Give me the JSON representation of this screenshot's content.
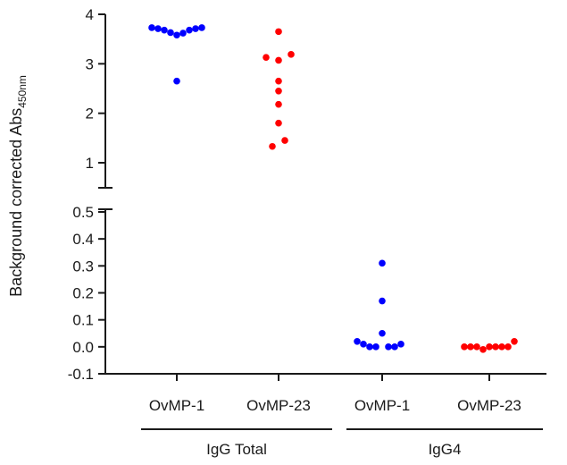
{
  "chart_data": {
    "type": "scatter",
    "ylabel": "Background corrected Abs",
    "ylabel_subscript": "450nm",
    "axis_break": true,
    "panels": [
      {
        "id": "upper",
        "ylim": [
          0.75,
          4
        ],
        "ticks": [
          "1",
          "2",
          "3",
          "4"
        ],
        "tick_values": [
          1,
          2,
          3,
          4
        ]
      },
      {
        "id": "lower",
        "ylim": [
          -0.1,
          0.5
        ],
        "ticks": [
          "-0.1",
          "0.0",
          "0.1",
          "0.2",
          "0.3",
          "0.4",
          "0.5"
        ],
        "tick_values": [
          -0.1,
          0,
          0.1,
          0.2,
          0.3,
          0.4,
          0.5
        ]
      }
    ],
    "categories": [
      "OvMP-1",
      "OvMP-23",
      "OvMP-1",
      "OvMP-23"
    ],
    "groups": [
      {
        "label": "IgG Total",
        "categories": [
          0,
          1
        ]
      },
      {
        "label": "IgG4",
        "categories": [
          2,
          3
        ]
      }
    ],
    "series": [
      {
        "category": 0,
        "panel": "upper",
        "color": "#0000ff",
        "values": [
          3.73,
          3.71,
          3.68,
          3.63,
          3.58,
          3.62,
          3.68,
          3.71,
          3.73,
          2.65
        ],
        "offsets": [
          -4,
          -3,
          -2,
          -1,
          0,
          1,
          2,
          3,
          4,
          0
        ]
      },
      {
        "category": 1,
        "panel": "upper",
        "color": "#ff0000",
        "values": [
          3.65,
          3.19,
          3.13,
          3.07,
          2.65,
          2.45,
          2.18,
          1.8,
          1.45,
          1.33
        ],
        "offsets": [
          0,
          2,
          -2,
          0,
          0,
          0,
          0,
          0,
          1,
          -1
        ]
      },
      {
        "category": 2,
        "panel": "lower",
        "color": "#0000ff",
        "values": [
          0.31,
          0.17,
          0.05,
          0.02,
          0.01,
          0.0,
          0.0,
          0.0,
          0.0,
          0.01
        ],
        "offsets": [
          0,
          0,
          0,
          -4,
          -3,
          -2,
          -1,
          1,
          2,
          3
        ]
      },
      {
        "category": 3,
        "panel": "lower",
        "color": "#ff0000",
        "values": [
          0.0,
          0.0,
          0.0,
          -0.01,
          0.0,
          0.0,
          0.0,
          0.0,
          0.02
        ],
        "offsets": [
          -4,
          -3,
          -2,
          -1,
          0,
          1,
          2,
          3,
          4
        ]
      }
    ]
  }
}
